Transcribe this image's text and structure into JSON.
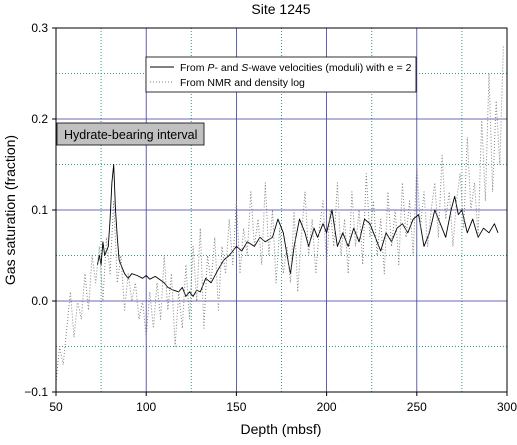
{
  "chart_data": {
    "type": "line",
    "title": "Site 1245",
    "xlabel": "Depth (mbsf)",
    "ylabel": "Gas saturation (fraction)",
    "xlim": [
      50,
      300
    ],
    "ylim": [
      -0.1,
      0.3
    ],
    "x_ticks": [
      50,
      100,
      150,
      200,
      250,
      300
    ],
    "x_tick_labels": [
      "50",
      "100",
      "150",
      "200",
      "250",
      "300"
    ],
    "y_ticks": [
      -0.1,
      0.0,
      0.1,
      0.2,
      0.3
    ],
    "y_tick_labels": [
      "−0.1",
      "0.0",
      "0.1",
      "0.2",
      "0.3"
    ],
    "grid": {
      "major": true,
      "minor": true,
      "major_color": "#3a3aa0",
      "minor_color": "#2f9a8a",
      "minor_style": "dotted"
    },
    "legend": {
      "placement": "top-right",
      "entries": [
        {
          "prefix": "From ",
          "italic1": "P",
          "middle": "- and ",
          "italic2": "S",
          "suffix": "-wave velocities (moduli) with e = 2"
        },
        {
          "prefix": "From NMR and density log",
          "italic1": "",
          "middle": "",
          "italic2": "",
          "suffix": ""
        }
      ]
    },
    "annotation": {
      "text": "Hydrate-bearing interval",
      "color": "#c0c0c0"
    },
    "series": [
      {
        "style": "solid",
        "color": "#000000",
        "x": [
          73,
          74,
          75,
          76,
          77,
          78,
          79,
          80,
          81,
          82,
          83,
          84,
          85,
          86,
          87,
          88,
          90,
          92,
          95,
          98,
          100,
          102,
          105,
          108,
          110,
          112,
          115,
          118,
          120,
          122,
          124,
          126,
          128,
          130,
          133,
          136,
          140,
          143,
          146,
          150,
          153,
          156,
          160,
          163,
          166,
          170,
          173,
          176,
          179,
          180,
          182,
          185,
          188,
          190,
          193,
          195,
          198,
          200,
          203,
          206,
          209,
          212,
          215,
          218,
          221,
          224,
          227,
          230,
          233,
          236,
          239,
          242,
          245,
          248,
          251,
          254,
          257,
          260,
          263,
          266,
          269,
          271,
          273,
          275,
          278,
          281,
          284,
          287,
          290,
          293,
          295
        ],
        "y": [
          0.04,
          0.05,
          0.04,
          0.065,
          0.05,
          0.055,
          0.06,
          0.09,
          0.13,
          0.15,
          0.1,
          0.07,
          0.045,
          0.04,
          0.035,
          0.03,
          0.025,
          0.03,
          0.028,
          0.025,
          0.028,
          0.024,
          0.027,
          0.023,
          0.02,
          0.015,
          0.012,
          0.01,
          0.015,
          0.005,
          0.01,
          0.005,
          0.012,
          0.01,
          0.025,
          0.02,
          0.035,
          0.045,
          0.05,
          0.06,
          0.055,
          0.065,
          0.06,
          0.07,
          0.065,
          0.07,
          0.09,
          0.075,
          0.04,
          0.03,
          0.06,
          0.09,
          0.075,
          0.06,
          0.08,
          0.07,
          0.085,
          0.075,
          0.1,
          0.06,
          0.075,
          0.06,
          0.08,
          0.065,
          0.09,
          0.085,
          0.07,
          0.055,
          0.075,
          0.065,
          0.08,
          0.085,
          0.075,
          0.09,
          0.095,
          0.06,
          0.075,
          0.1,
          0.085,
          0.07,
          0.1,
          0.115,
          0.095,
          0.1,
          0.075,
          0.09,
          0.07,
          0.08,
          0.075,
          0.085,
          0.075
        ]
      },
      {
        "style": "dotted",
        "color": "#808080",
        "x": [
          50,
          52,
          54,
          56,
          58,
          60,
          62,
          64,
          66,
          68,
          70,
          72,
          74,
          76,
          78,
          80,
          82,
          84,
          86,
          88,
          90,
          92,
          94,
          96,
          98,
          100,
          102,
          104,
          106,
          108,
          110,
          112,
          114,
          116,
          118,
          120,
          122,
          124,
          126,
          128,
          130,
          132,
          134,
          136,
          138,
          140,
          142,
          144,
          146,
          148,
          150,
          152,
          154,
          156,
          158,
          160,
          162,
          164,
          166,
          168,
          170,
          172,
          174,
          176,
          178,
          180,
          182,
          184,
          186,
          188,
          190,
          192,
          194,
          196,
          198,
          200,
          202,
          204,
          206,
          208,
          210,
          212,
          214,
          216,
          218,
          220,
          222,
          224,
          226,
          228,
          230,
          232,
          234,
          236,
          238,
          240,
          242,
          244,
          246,
          248,
          250,
          252,
          254,
          256,
          258,
          260,
          262,
          264,
          266,
          268,
          270,
          272,
          274,
          276,
          278,
          280,
          282,
          284,
          286,
          288,
          290,
          292,
          294,
          296,
          298
        ],
        "y": [
          -0.09,
          -0.05,
          -0.07,
          -0.03,
          0.01,
          -0.04,
          0.0,
          -0.02,
          0.03,
          -0.01,
          0.05,
          0.02,
          0.06,
          0.0,
          0.07,
          0.03,
          0.11,
          0.02,
          0.05,
          -0.01,
          0.03,
          0.0,
          0.02,
          -0.02,
          0.0,
          -0.04,
          0.01,
          -0.03,
          0.02,
          -0.02,
          0.05,
          -0.01,
          0.03,
          -0.05,
          0.01,
          -0.03,
          0.04,
          -0.02,
          0.06,
          0.0,
          0.08,
          -0.03,
          0.05,
          0.02,
          0.07,
          -0.01,
          0.06,
          0.03,
          0.09,
          0.04,
          0.11,
          0.03,
          0.08,
          0.05,
          0.12,
          0.06,
          0.09,
          0.04,
          0.13,
          0.05,
          0.1,
          0.02,
          0.08,
          0.03,
          0.06,
          0.02,
          0.1,
          0.01,
          0.07,
          0.12,
          0.05,
          0.09,
          0.03,
          0.08,
          0.11,
          0.04,
          0.1,
          0.06,
          0.13,
          0.05,
          0.09,
          0.03,
          0.12,
          0.06,
          0.1,
          0.04,
          0.14,
          0.07,
          0.11,
          0.05,
          0.09,
          0.03,
          0.12,
          0.06,
          0.1,
          0.04,
          0.13,
          0.07,
          0.11,
          0.05,
          0.15,
          0.08,
          0.12,
          0.06,
          0.1,
          0.13,
          0.07,
          0.16,
          0.09,
          0.12,
          0.06,
          0.11,
          0.14,
          0.08,
          0.18,
          0.1,
          0.13,
          0.07,
          0.2,
          0.11,
          0.25,
          0.12,
          0.22,
          0.15,
          0.28
        ]
      }
    ]
  }
}
